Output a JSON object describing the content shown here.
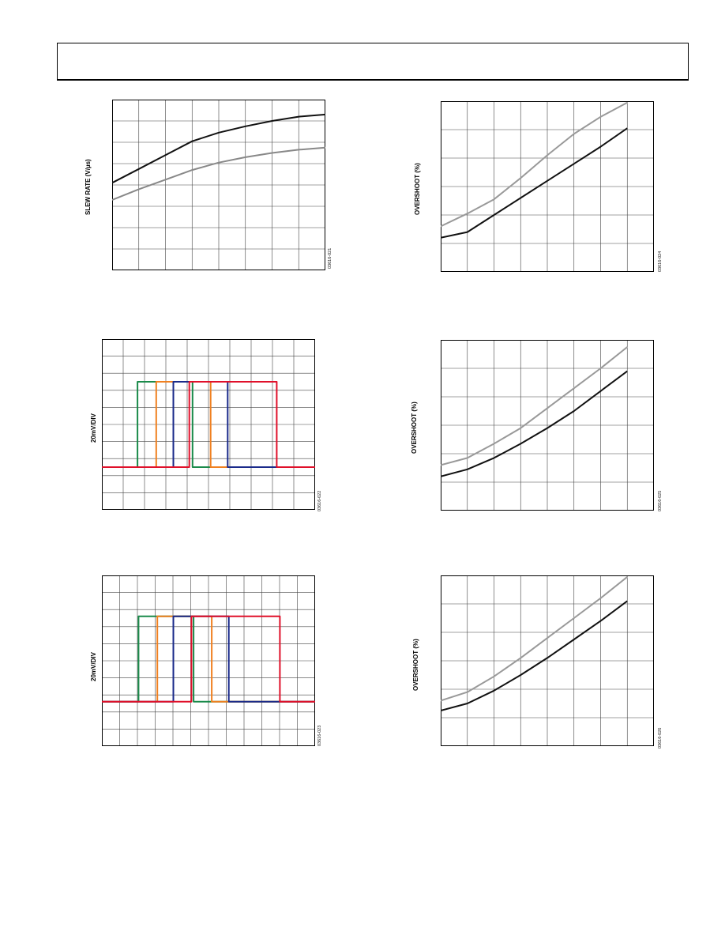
{
  "figures": [
    {
      "id": "fig-21",
      "figure_code": "03616-021",
      "ylabel": "SLEW RATE (V/µs)"
    },
    {
      "id": "fig-24",
      "figure_code": "03616-024",
      "ylabel": "OVERSHOOT (%)"
    },
    {
      "id": "fig-22",
      "figure_code": "03616-022",
      "ylabel": "20mV/DIV"
    },
    {
      "id": "fig-25",
      "figure_code": "03616-025",
      "ylabel": "OVERSHOOT (%)"
    },
    {
      "id": "fig-23",
      "figure_code": "03616-023",
      "ylabel": "20mV/DIV"
    },
    {
      "id": "fig-26",
      "figure_code": "03616-026",
      "ylabel": "OVERSHOOT (%)"
    }
  ],
  "chart_data": [
    {
      "type": "line",
      "ylabel": "SLEW RATE (V/µs)",
      "grid": true,
      "xlim": [
        0,
        8
      ],
      "ylim": [
        0,
        8
      ],
      "series": [
        {
          "color": "#111111",
          "x": [
            0,
            1,
            2,
            3,
            4,
            5,
            6,
            7,
            8
          ],
          "y": [
            4.1,
            4.75,
            5.4,
            6.05,
            6.45,
            6.75,
            7.0,
            7.2,
            7.3
          ]
        },
        {
          "color": "#888888",
          "x": [
            0,
            1,
            2,
            3,
            4,
            5,
            6,
            7,
            8
          ],
          "y": [
            3.3,
            3.8,
            4.25,
            4.7,
            5.05,
            5.3,
            5.5,
            5.65,
            5.75
          ]
        }
      ]
    },
    {
      "type": "line",
      "ylabel": "OVERSHOOT (%)",
      "grid": true,
      "xlim": [
        0,
        8
      ],
      "ylim": [
        0,
        6
      ],
      "series": [
        {
          "color": "#999999",
          "x": [
            0,
            1,
            2,
            3,
            4,
            5,
            6,
            7
          ],
          "y": [
            1.6,
            2.05,
            2.55,
            3.3,
            4.1,
            4.85,
            5.45,
            5.95
          ]
        },
        {
          "color": "#111111",
          "x": [
            0,
            1,
            2,
            3,
            4,
            5,
            6,
            7
          ],
          "y": [
            1.2,
            1.4,
            2.0,
            2.6,
            3.2,
            3.8,
            4.4,
            5.05
          ]
        }
      ]
    },
    {
      "type": "line",
      "ylabel": "20mV/DIV",
      "grid": true,
      "xlim": [
        0,
        10
      ],
      "ylim": [
        0,
        10
      ],
      "series": [
        {
          "color": "#1a8a4a",
          "x": [
            0,
            1.67,
            1.67,
            4.25,
            4.25,
            10
          ],
          "y": [
            2.5,
            2.5,
            7.5,
            7.5,
            2.5,
            2.5
          ]
        },
        {
          "color": "#f08020",
          "x": [
            0,
            2.55,
            2.55,
            5.1,
            5.1,
            10
          ],
          "y": [
            2.5,
            2.5,
            7.5,
            7.5,
            2.5,
            2.5
          ]
        },
        {
          "color": "#1a2a8a",
          "x": [
            0,
            3.35,
            3.35,
            5.9,
            5.9,
            10
          ],
          "y": [
            2.5,
            2.5,
            7.5,
            7.5,
            2.5,
            2.5
          ]
        },
        {
          "color": "#e0102a",
          "x": [
            0,
            4.1,
            4.1,
            8.2,
            8.2,
            10
          ],
          "y": [
            2.5,
            2.5,
            7.5,
            7.5,
            2.5,
            2.5
          ]
        }
      ]
    },
    {
      "type": "line",
      "ylabel": "OVERSHOOT (%)",
      "grid": true,
      "xlim": [
        0,
        8
      ],
      "ylim": [
        0,
        6
      ],
      "series": [
        {
          "color": "#999999",
          "x": [
            0,
            1,
            2,
            3,
            4,
            5,
            6,
            7
          ],
          "y": [
            1.6,
            1.85,
            2.35,
            2.9,
            3.6,
            4.3,
            5.0,
            5.75
          ]
        },
        {
          "color": "#111111",
          "x": [
            0,
            1,
            2,
            3,
            4,
            5,
            6,
            7
          ],
          "y": [
            1.2,
            1.45,
            1.85,
            2.35,
            2.9,
            3.5,
            4.2,
            4.9
          ]
        }
      ]
    },
    {
      "type": "line",
      "ylabel": "20mV/DIV",
      "grid": true,
      "xlim": [
        0,
        10
      ],
      "ylim": [
        0,
        10
      ],
      "series": [
        {
          "color": "#1a8a4a",
          "x": [
            0,
            1.72,
            1.72,
            4.3,
            4.3,
            10
          ],
          "y": [
            2.6,
            2.6,
            7.6,
            7.6,
            2.6,
            2.6
          ]
        },
        {
          "color": "#f08020",
          "x": [
            0,
            2.6,
            2.6,
            5.15,
            5.15,
            10
          ],
          "y": [
            2.6,
            2.6,
            7.6,
            7.6,
            2.6,
            2.6
          ]
        },
        {
          "color": "#1a2a8a",
          "x": [
            0,
            3.35,
            3.35,
            5.95,
            5.95,
            10
          ],
          "y": [
            2.6,
            2.6,
            7.6,
            7.6,
            2.6,
            2.6
          ]
        },
        {
          "color": "#e0102a",
          "x": [
            0,
            4.2,
            4.2,
            8.35,
            8.35,
            10
          ],
          "y": [
            2.6,
            2.6,
            7.6,
            7.6,
            2.6,
            2.6
          ]
        }
      ]
    },
    {
      "type": "line",
      "ylabel": "OVERSHOOT (%)",
      "grid": true,
      "xlim": [
        0,
        8
      ],
      "ylim": [
        0,
        6
      ],
      "series": [
        {
          "color": "#999999",
          "x": [
            0,
            1,
            2,
            3,
            4,
            5,
            6,
            7
          ],
          "y": [
            1.6,
            1.9,
            2.45,
            3.1,
            3.8,
            4.5,
            5.2,
            5.95
          ]
        },
        {
          "color": "#111111",
          "x": [
            0,
            1,
            2,
            3,
            4,
            5,
            6,
            7
          ],
          "y": [
            1.25,
            1.5,
            1.95,
            2.5,
            3.1,
            3.75,
            4.4,
            5.1
          ]
        }
      ]
    }
  ]
}
